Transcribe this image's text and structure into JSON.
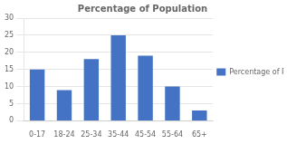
{
  "chart_data": {
    "type": "bar",
    "title": "Percentage of Population",
    "categories": [
      "0-17",
      "18-24",
      "25-34",
      "35-44",
      "45-54",
      "55-64",
      "65+"
    ],
    "series": [
      {
        "name": "Percentage of Population",
        "color": "#4472C4",
        "values": [
          15,
          9,
          18,
          25,
          19,
          10,
          3
        ]
      }
    ],
    "ylim": [
      0,
      30
    ],
    "yticks": [
      0,
      5,
      10,
      15,
      20,
      25,
      30
    ],
    "grid": true,
    "legend": "right"
  }
}
